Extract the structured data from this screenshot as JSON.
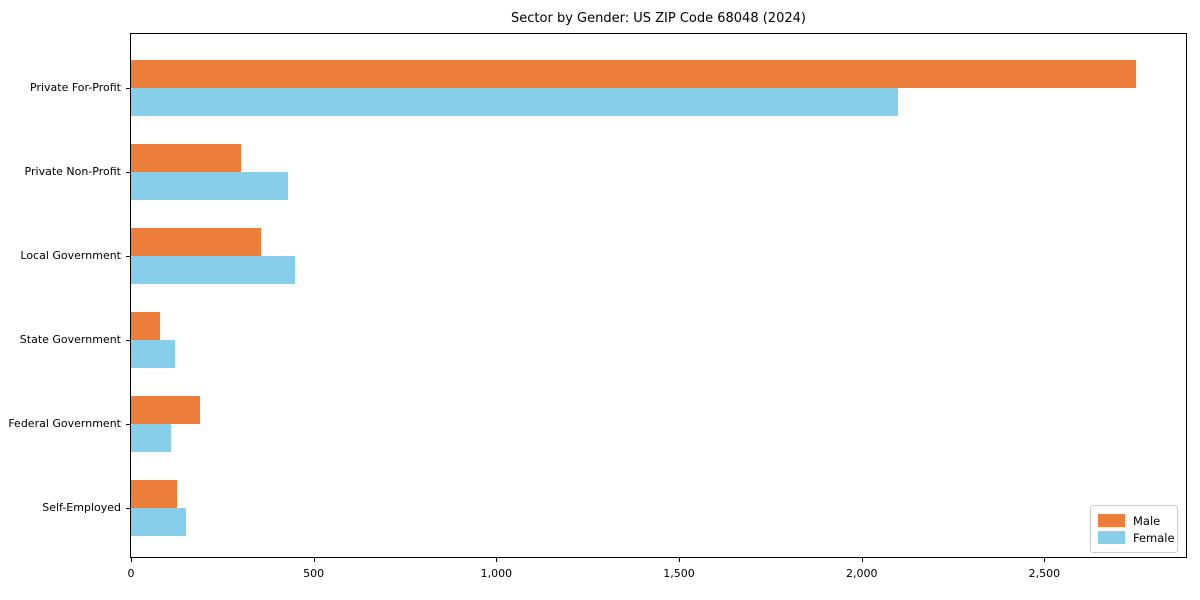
{
  "chart_data": {
    "type": "bar",
    "orientation": "horizontal",
    "title": "Sector by Gender: US ZIP Code 68048 (2024)",
    "categories": [
      "Private For-Profit",
      "Private Non-Profit",
      "Local Government",
      "State Government",
      "Federal Government",
      "Self-Employed"
    ],
    "series": [
      {
        "name": "Male",
        "color": "#ED7D3B",
        "values": [
          2750,
          300,
          355,
          80,
          190,
          125
        ]
      },
      {
        "name": "Female",
        "color": "#87CEEB",
        "values": [
          2100,
          430,
          450,
          120,
          110,
          150
        ]
      }
    ],
    "xlim": [
      0,
      2887.5
    ],
    "x_ticks": [
      0,
      500,
      1000,
      1500,
      2000,
      2500
    ],
    "x_tick_labels": [
      "0",
      "500",
      "1,000",
      "1,500",
      "2,000",
      "2,500"
    ],
    "xlabel": "",
    "ylabel": "",
    "grid": false,
    "legend_position": "lower right",
    "background_color": "#ffffff",
    "spine_color": "#000000"
  }
}
